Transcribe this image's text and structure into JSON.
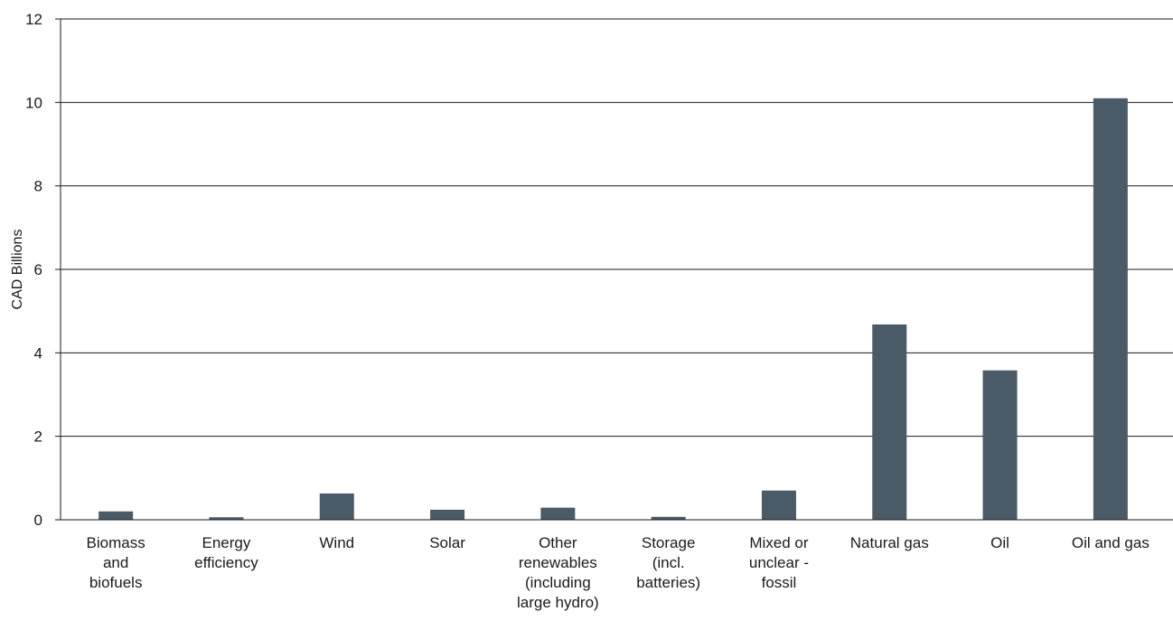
{
  "chart_data": {
    "type": "bar",
    "title": "",
    "xlabel": "",
    "ylabel": "CAD Billions",
    "ylim": [
      0,
      12
    ],
    "yticks": [
      0,
      2,
      4,
      6,
      8,
      10,
      12
    ],
    "grid": true,
    "bar_color": "#4a5a67",
    "categories": [
      [
        "Biomass",
        "and",
        "biofuels"
      ],
      [
        "Energy",
        "efficiency"
      ],
      [
        "Wind"
      ],
      [
        "Solar"
      ],
      [
        "Other",
        "renewables",
        "(including",
        "large hydro)"
      ],
      [
        "Storage",
        "(incl.",
        "batteries)"
      ],
      [
        "Mixed or",
        "unclear -",
        "fossil"
      ],
      [
        "Natural gas"
      ],
      [
        "Oil"
      ],
      [
        "Oil and gas"
      ]
    ],
    "values": [
      0.2,
      0.06,
      0.63,
      0.24,
      0.29,
      0.07,
      0.7,
      4.68,
      3.58,
      10.1
    ]
  }
}
